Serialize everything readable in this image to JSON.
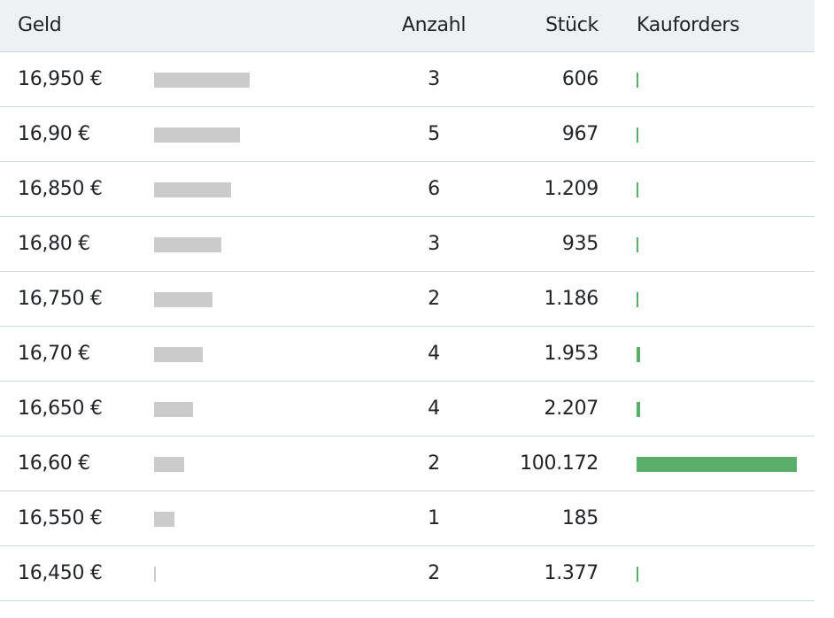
{
  "table": {
    "columns": [
      "Geld",
      "Anzahl",
      "Stück",
      "Kauforders"
    ],
    "rows": [
      [
        "16,950 €",
        "3",
        "606"
      ],
      [
        "16,90 €",
        "5",
        "967"
      ],
      [
        "16,850 €",
        "6",
        "1.209"
      ],
      [
        "16,80 €",
        "3",
        "935"
      ],
      [
        "16,750 €",
        "2",
        "1.186"
      ],
      [
        "16,70 €",
        "4",
        "1.953"
      ],
      [
        "16,650 €",
        "4",
        "2.207"
      ],
      [
        "16,60 €",
        "2",
        "100.172"
      ],
      [
        "16,550 €",
        "1",
        "185"
      ],
      [
        "16,450 €",
        "2",
        "1.377"
      ]
    ]
  }
}
